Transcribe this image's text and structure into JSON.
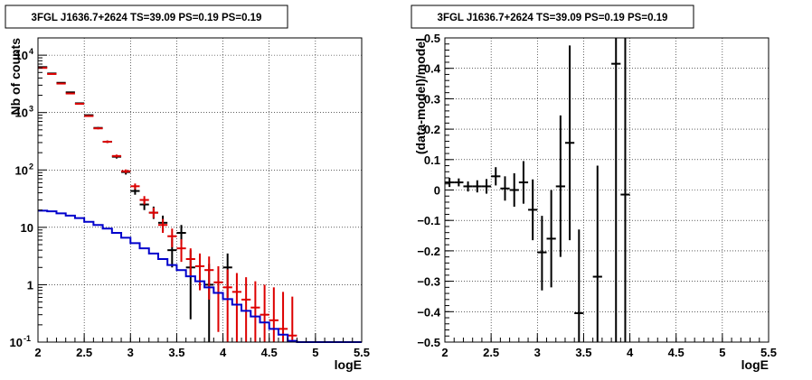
{
  "chart_data": [
    {
      "type": "scatter",
      "title": "3FGL J1636.7+2624 TS=39.09 PS=0.19 PS=0.19",
      "xlabel": "logE",
      "ylabel": "Nb of counts",
      "xlim": [
        2,
        5.5
      ],
      "ylim": [
        0.1,
        20000
      ],
      "yscale": "log",
      "grid": true,
      "x_ticks": [
        "2",
        "2.5",
        "3",
        "3.5",
        "4",
        "4.5",
        "5",
        "5.5"
      ],
      "y_ticks": [
        {
          "value": 0.1,
          "label": "10",
          "sup": "-1"
        },
        {
          "value": 1,
          "label": "1",
          "sup": ""
        },
        {
          "value": 10,
          "label": "10",
          "sup": ""
        },
        {
          "value": 100,
          "label": "10",
          "sup": "2"
        },
        {
          "value": 1000,
          "label": "10",
          "sup": "3"
        },
        {
          "value": 10000,
          "label": "10",
          "sup": "4"
        }
      ],
      "series": [
        {
          "kind": "errorbar",
          "color": "#000000",
          "xerr": 0.05,
          "points": [
            {
              "x": 2.05,
              "y": 6200,
              "lo": 6100,
              "hi": 6300
            },
            {
              "x": 2.15,
              "y": 4800,
              "lo": 4720,
              "hi": 4880
            },
            {
              "x": 2.25,
              "y": 3300,
              "lo": 3240,
              "hi": 3360
            },
            {
              "x": 2.35,
              "y": 2250,
              "lo": 2200,
              "hi": 2300
            },
            {
              "x": 2.45,
              "y": 1450,
              "lo": 1410,
              "hi": 1490
            },
            {
              "x": 2.55,
              "y": 900,
              "lo": 870,
              "hi": 930
            },
            {
              "x": 2.65,
              "y": 540,
              "lo": 520,
              "hi": 560
            },
            {
              "x": 2.75,
              "y": 310,
              "lo": 295,
              "hi": 325
            },
            {
              "x": 2.85,
              "y": 170,
              "lo": 158,
              "hi": 182
            },
            {
              "x": 2.95,
              "y": 92,
              "lo": 83,
              "hi": 101
            },
            {
              "x": 3.05,
              "y": 43,
              "lo": 37,
              "hi": 50
            },
            {
              "x": 3.15,
              "y": 25,
              "lo": 20,
              "hi": 30
            },
            {
              "x": 3.25,
              "y": 18,
              "lo": 14,
              "hi": 23
            },
            {
              "x": 3.35,
              "y": 12,
              "lo": 8.5,
              "hi": 16
            },
            {
              "x": 3.45,
              "y": 4,
              "lo": 2,
              "hi": 6.5
            },
            {
              "x": 3.55,
              "y": 8,
              "lo": 5,
              "hi": 11
            },
            {
              "x": 3.65,
              "y": 2,
              "lo": 0.25,
              "hi": 4
            },
            {
              "x": 3.85,
              "y": 1,
              "lo": 0.1,
              "hi": 2.3
            },
            {
              "x": 4.05,
              "y": 2,
              "lo": 0.6,
              "hi": 3.5
            }
          ]
        },
        {
          "kind": "errorbar",
          "color": "#dd0000",
          "xerr": 0.05,
          "points": [
            {
              "x": 2.05,
              "y": 6000,
              "lo": 5900,
              "hi": 6100
            },
            {
              "x": 2.15,
              "y": 4700,
              "lo": 4620,
              "hi": 4780
            },
            {
              "x": 2.25,
              "y": 3200,
              "lo": 3140,
              "hi": 3260
            },
            {
              "x": 2.35,
              "y": 2150,
              "lo": 2100,
              "hi": 2200
            },
            {
              "x": 2.45,
              "y": 1420,
              "lo": 1380,
              "hi": 1460
            },
            {
              "x": 2.55,
              "y": 870,
              "lo": 840,
              "hi": 900
            },
            {
              "x": 2.65,
              "y": 530,
              "lo": 510,
              "hi": 550
            },
            {
              "x": 2.75,
              "y": 310,
              "lo": 295,
              "hi": 325
            },
            {
              "x": 2.85,
              "y": 175,
              "lo": 165,
              "hi": 185
            },
            {
              "x": 2.95,
              "y": 95,
              "lo": 88,
              "hi": 102
            },
            {
              "x": 3.05,
              "y": 52,
              "lo": 46,
              "hi": 58
            },
            {
              "x": 3.15,
              "y": 30,
              "lo": 25,
              "hi": 35
            },
            {
              "x": 3.25,
              "y": 18,
              "lo": 14.5,
              "hi": 22
            },
            {
              "x": 3.35,
              "y": 11,
              "lo": 8,
              "hi": 14
            },
            {
              "x": 3.45,
              "y": 7,
              "lo": 4.5,
              "hi": 9.5
            },
            {
              "x": 3.55,
              "y": 4.3,
              "lo": 2.5,
              "hi": 6.2
            },
            {
              "x": 3.65,
              "y": 2.8,
              "lo": 1.4,
              "hi": 4.3
            },
            {
              "x": 3.75,
              "y": 2.1,
              "lo": 0.8,
              "hi": 3.5
            },
            {
              "x": 3.85,
              "y": 1.8,
              "lo": 0.55,
              "hi": 3.1
            },
            {
              "x": 3.95,
              "y": 1.1,
              "lo": 0.15,
              "hi": 2.1
            },
            {
              "x": 4.05,
              "y": 0.9,
              "lo": 0.1,
              "hi": 1.85
            },
            {
              "x": 4.15,
              "y": 0.75,
              "lo": 0.1,
              "hi": 1.6
            },
            {
              "x": 4.25,
              "y": 0.55,
              "lo": 0.1,
              "hi": 1.35
            },
            {
              "x": 4.35,
              "y": 0.4,
              "lo": 0.1,
              "hi": 1.15
            },
            {
              "x": 4.45,
              "y": 0.3,
              "lo": 0.1,
              "hi": 1.0
            },
            {
              "x": 4.55,
              "y": 0.24,
              "lo": 0.1,
              "hi": 0.9
            },
            {
              "x": 4.65,
              "y": 0.17,
              "lo": 0.1,
              "hi": 0.75
            },
            {
              "x": 4.75,
              "y": 0.13,
              "lo": 0.1,
              "hi": 0.62
            }
          ]
        },
        {
          "kind": "step",
          "color": "#0000cc",
          "bins": [
            {
              "x0": 2.0,
              "x1": 2.1,
              "y": 19.5
            },
            {
              "x0": 2.1,
              "x1": 2.2,
              "y": 19.0
            },
            {
              "x0": 2.2,
              "x1": 2.3,
              "y": 17.5
            },
            {
              "x0": 2.3,
              "x1": 2.4,
              "y": 16.0
            },
            {
              "x0": 2.4,
              "x1": 2.5,
              "y": 14.5
            },
            {
              "x0": 2.5,
              "x1": 2.6,
              "y": 12.5
            },
            {
              "x0": 2.6,
              "x1": 2.7,
              "y": 11.0
            },
            {
              "x0": 2.7,
              "x1": 2.8,
              "y": 9.5
            },
            {
              "x0": 2.8,
              "x1": 2.9,
              "y": 8.0
            },
            {
              "x0": 2.9,
              "x1": 3.0,
              "y": 6.6
            },
            {
              "x0": 3.0,
              "x1": 3.1,
              "y": 5.3
            },
            {
              "x0": 3.1,
              "x1": 3.2,
              "y": 4.3
            },
            {
              "x0": 3.2,
              "x1": 3.3,
              "y": 3.5
            },
            {
              "x0": 3.3,
              "x1": 3.4,
              "y": 2.8
            },
            {
              "x0": 3.4,
              "x1": 3.5,
              "y": 2.2
            },
            {
              "x0": 3.5,
              "x1": 3.6,
              "y": 1.8
            },
            {
              "x0": 3.6,
              "x1": 3.7,
              "y": 1.4
            },
            {
              "x0": 3.7,
              "x1": 3.8,
              "y": 1.15
            },
            {
              "x0": 3.8,
              "x1": 3.9,
              "y": 0.9
            },
            {
              "x0": 3.9,
              "x1": 4.0,
              "y": 0.72
            },
            {
              "x0": 4.0,
              "x1": 4.1,
              "y": 0.56
            },
            {
              "x0": 4.1,
              "x1": 4.2,
              "y": 0.45
            },
            {
              "x0": 4.2,
              "x1": 4.3,
              "y": 0.35
            },
            {
              "x0": 4.3,
              "x1": 4.4,
              "y": 0.28
            },
            {
              "x0": 4.4,
              "x1": 4.5,
              "y": 0.22
            },
            {
              "x0": 4.5,
              "x1": 4.6,
              "y": 0.17
            },
            {
              "x0": 4.6,
              "x1": 4.7,
              "y": 0.135
            },
            {
              "x0": 4.7,
              "x1": 4.8,
              "y": 0.105
            },
            {
              "x0": 4.8,
              "x1": 5.5,
              "y": 0.1
            }
          ]
        }
      ]
    },
    {
      "type": "scatter",
      "title": "3FGL J1636.7+2624 TS=39.09 PS=0.19 PS=0.19",
      "xlabel": "logE",
      "ylabel": "(data-model)/model",
      "xlim": [
        2,
        5.5
      ],
      "ylim": [
        -0.5,
        0.5
      ],
      "yscale": "linear",
      "grid": true,
      "x_ticks": [
        "2",
        "2.5",
        "3",
        "3.5",
        "4",
        "4.5",
        "5",
        "5.5"
      ],
      "y_ticks": [
        "-0.5",
        "-0.4",
        "-0.3",
        "-0.2",
        "-0.1",
        "0",
        "0.1",
        "0.2",
        "0.3",
        "0.4",
        "0.5"
      ],
      "series": [
        {
          "kind": "errorbar",
          "color": "#000000",
          "xerr": 0.05,
          "points": [
            {
              "x": 2.05,
              "y": 0.025,
              "lo": 0.01,
              "hi": 0.04
            },
            {
              "x": 2.15,
              "y": 0.025,
              "lo": 0.012,
              "hi": 0.038
            },
            {
              "x": 2.25,
              "y": 0.012,
              "lo": -0.005,
              "hi": 0.028
            },
            {
              "x": 2.35,
              "y": 0.012,
              "lo": -0.008,
              "hi": 0.032
            },
            {
              "x": 2.45,
              "y": 0.012,
              "lo": -0.012,
              "hi": 0.036
            },
            {
              "x": 2.55,
              "y": 0.045,
              "lo": 0.015,
              "hi": 0.075
            },
            {
              "x": 2.65,
              "y": 0.005,
              "lo": -0.035,
              "hi": 0.045
            },
            {
              "x": 2.75,
              "y": 0.0,
              "lo": -0.055,
              "hi": 0.055
            },
            {
              "x": 2.85,
              "y": 0.025,
              "lo": -0.045,
              "hi": 0.095
            },
            {
              "x": 2.95,
              "y": -0.065,
              "lo": -0.165,
              "hi": 0.035
            },
            {
              "x": 3.05,
              "y": -0.205,
              "lo": -0.33,
              "hi": -0.085
            },
            {
              "x": 3.15,
              "y": -0.16,
              "lo": -0.32,
              "hi": 0.0
            },
            {
              "x": 3.25,
              "y": 0.012,
              "lo": -0.22,
              "hi": 0.245
            },
            {
              "x": 3.35,
              "y": 0.155,
              "lo": -0.165,
              "hi": 0.475
            },
            {
              "x": 3.45,
              "y": -0.405,
              "lo": -0.5,
              "hi": -0.13
            },
            {
              "x": 3.65,
              "y": -0.285,
              "lo": -0.5,
              "hi": 0.08
            },
            {
              "x": 3.85,
              "y": 0.415,
              "lo": -0.5,
              "hi": 0.5
            },
            {
              "x": 3.95,
              "y": -0.015,
              "lo": -0.5,
              "hi": 0.5
            }
          ]
        }
      ]
    }
  ]
}
